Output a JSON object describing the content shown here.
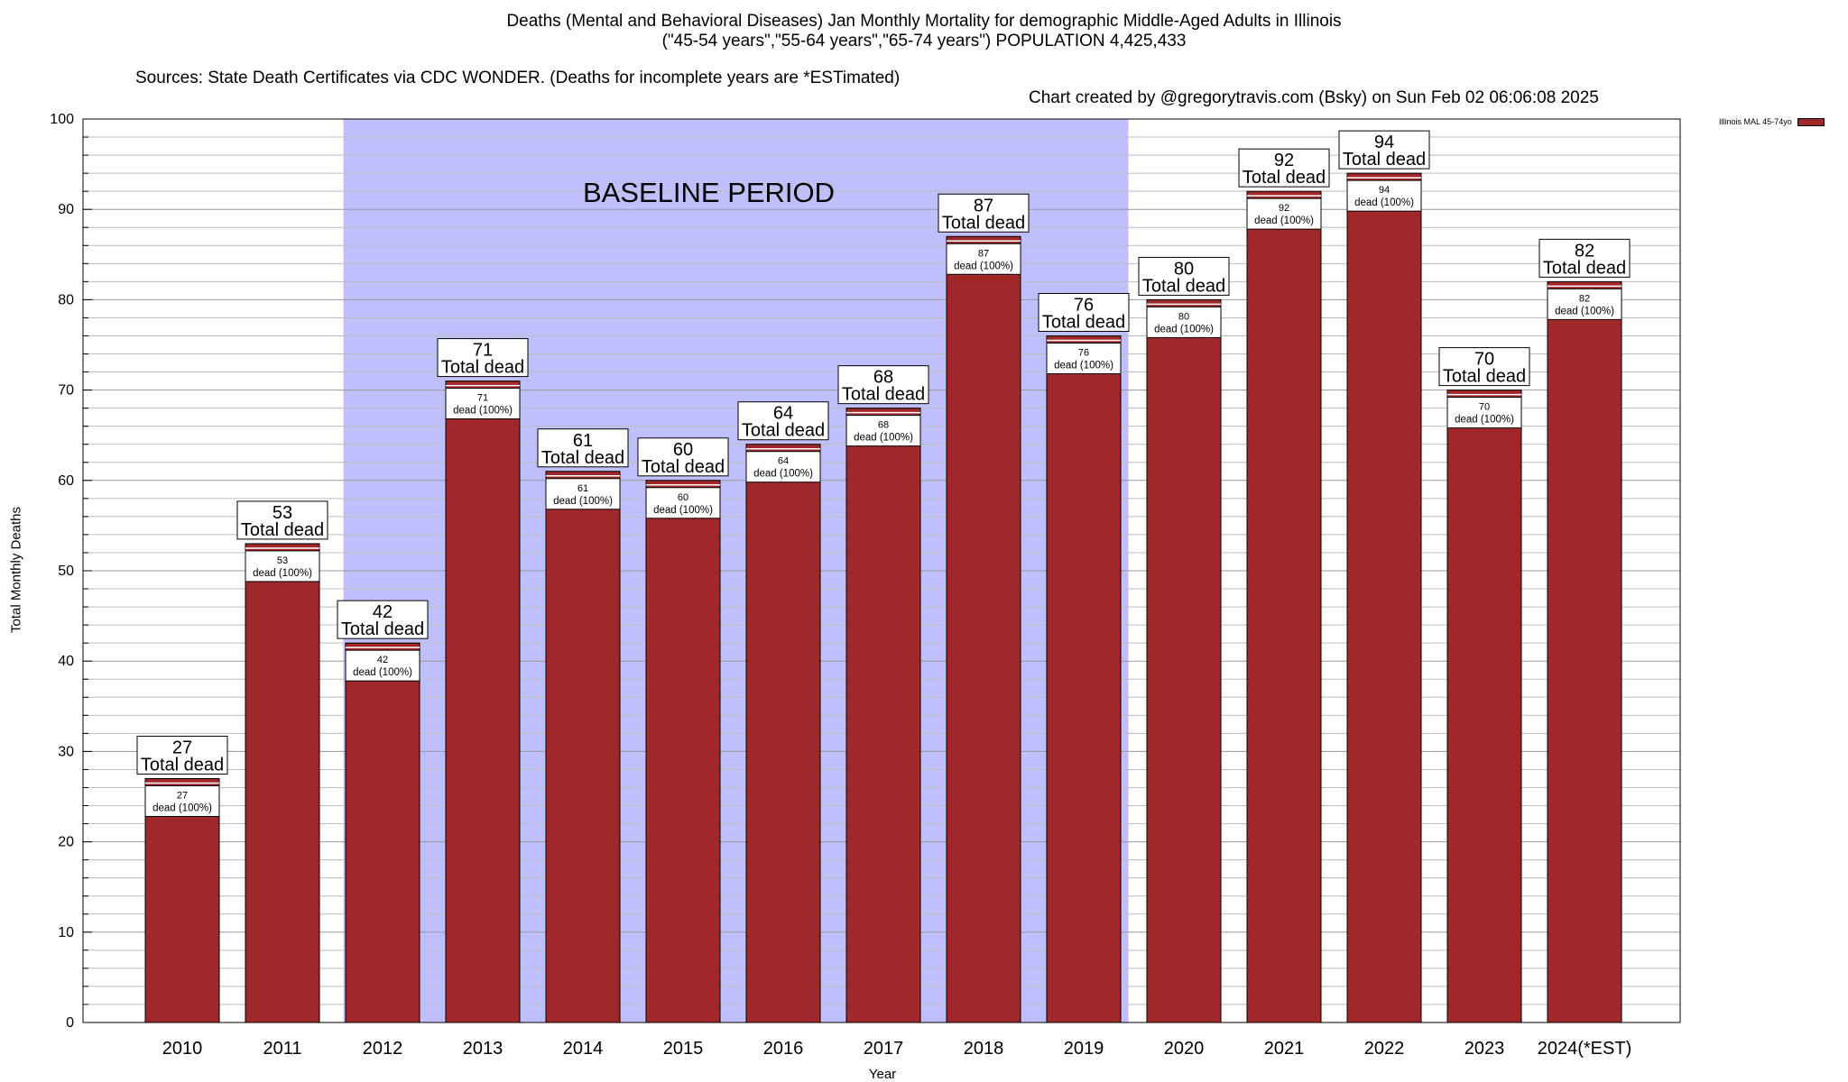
{
  "title": {
    "line1": "Deaths (Mental and Behavioral Diseases) Jan Monthly Mortality for demographic Middle-Aged Adults in Illinois",
    "line2": "(\"45-54 years\",\"55-64 years\",\"65-74 years\") POPULATION 4,425,433",
    "line3_source": "Sources: State Death Certificates via CDC WONDER. (Deaths for incomplete years are *ESTimated)",
    "line3_credit": "Chart created by @gregorytravis.com (Bsky) on Sun Feb 02 06:06:08 2025"
  },
  "chart_data": {
    "type": "bar",
    "xlabel": "Year",
    "ylabel": "Total Monthly Deaths",
    "ylim": [
      0,
      100
    ],
    "y_ticks": [
      0,
      10,
      20,
      30,
      40,
      50,
      60,
      70,
      80,
      90,
      100
    ],
    "grid": true,
    "categories": [
      "2010",
      "2011",
      "2012",
      "2013",
      "2014",
      "2015",
      "2016",
      "2017",
      "2018",
      "2019",
      "2020",
      "2021",
      "2022",
      "2023",
      "2024(*EST)"
    ],
    "series": [
      {
        "name": "Illinois MAL 45-74yo",
        "color": "#a0282a",
        "values": [
          27,
          53,
          42,
          71,
          61,
          60,
          64,
          68,
          87,
          76,
          80,
          92,
          94,
          70,
          82
        ]
      }
    ],
    "bar_label_top": "Total dead",
    "bar_label_inner": "dead (100%)",
    "baseline_period": {
      "label": "BASELINE PERIOD",
      "from": "2012",
      "to": "2019",
      "color": "#bfbffd"
    },
    "legend": {
      "position": "top-right",
      "label": "Illinois MAL 45-74yo"
    }
  }
}
